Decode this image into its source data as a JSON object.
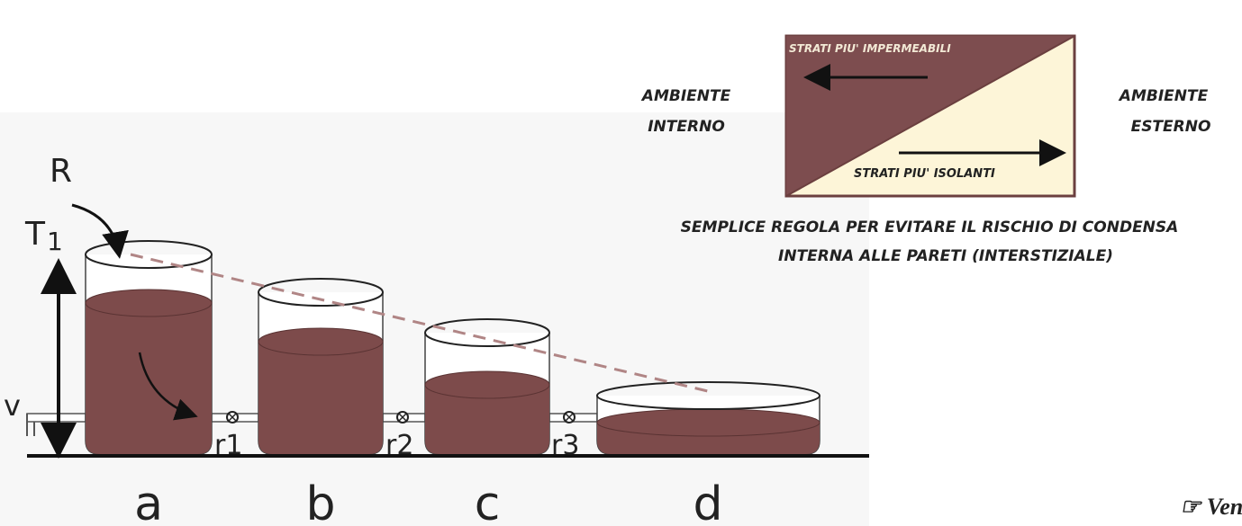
{
  "tank_diagram": {
    "labels": {
      "R": "R",
      "T": "T",
      "T_sub": "1",
      "v": "v",
      "r1": "r1",
      "r2": "r2",
      "r3": "r3"
    },
    "tanks": [
      "a",
      "b",
      "c",
      "d"
    ]
  },
  "rule_diagram": {
    "top_label": "STRATI PIU' IMPERMEABILI",
    "bottom_label": "STRATI PIU' ISOLANTI",
    "left_label": [
      "AMBIENTE",
      "INTERNO"
    ],
    "right_label": [
      "AMBIENTE",
      "ESTERNO"
    ],
    "caption": [
      "SEMPLICE REGOLA PER EVITARE IL RISCHIO DI CONDENSA",
      "INTERNA ALLE PARETI (INTERSTIZIALE)"
    ]
  },
  "nav": {
    "link": "☞ Ven"
  }
}
